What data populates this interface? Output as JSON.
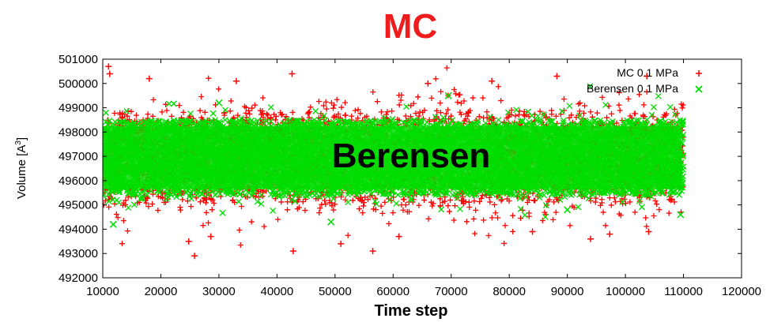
{
  "chart_data": {
    "type": "scatter",
    "title": "MC",
    "annotation": "Berensen",
    "xlabel": "Time step",
    "ylabel_main": "Volume [A",
    "ylabel_sup": "3",
    "ylabel_end": "]",
    "xlim": [
      10000,
      120000
    ],
    "ylim": [
      492000,
      501000
    ],
    "xticks": [
      10000,
      20000,
      30000,
      40000,
      50000,
      60000,
      70000,
      80000,
      90000,
      100000,
      110000,
      120000
    ],
    "yticks": [
      492000,
      493000,
      494000,
      495000,
      496000,
      497000,
      498000,
      499000,
      500000,
      501000
    ],
    "legend_position": "top-right",
    "grid": false,
    "series": [
      {
        "name": "MC 0.1 MPa",
        "marker": "plus",
        "color": "#ff0000",
        "x_range": [
          10000,
          110000
        ],
        "mean": 496900,
        "core_band": [
          495100,
          498900
        ],
        "extremes": [
          {
            "x": 11000,
            "y": 500700
          },
          {
            "x": 11200,
            "y": 500400
          },
          {
            "x": 25800,
            "y": 492900
          },
          {
            "x": 24800,
            "y": 493500
          },
          {
            "x": 42600,
            "y": 500400
          },
          {
            "x": 42800,
            "y": 493100
          },
          {
            "x": 51000,
            "y": 493400
          },
          {
            "x": 56500,
            "y": 493100
          },
          {
            "x": 28600,
            "y": 493700
          },
          {
            "x": 33000,
            "y": 500100
          },
          {
            "x": 66000,
            "y": 500000
          },
          {
            "x": 88200,
            "y": 500300
          },
          {
            "x": 94000,
            "y": 493600
          },
          {
            "x": 97300,
            "y": 493800
          },
          {
            "x": 103700,
            "y": 500300
          },
          {
            "x": 104000,
            "y": 493900
          },
          {
            "x": 18000,
            "y": 500200
          },
          {
            "x": 61000,
            "y": 493700
          },
          {
            "x": 77000,
            "y": 500100
          },
          {
            "x": 84000,
            "y": 493900
          }
        ]
      },
      {
        "name": "Berensen 0.1 MPa",
        "marker": "cross",
        "color": "#00dd00",
        "x_range": [
          10000,
          110000
        ],
        "mean": 496900,
        "core_band": [
          495400,
          498500
        ],
        "extremes": [
          {
            "x": 11800,
            "y": 494200
          },
          {
            "x": 49300,
            "y": 494300
          },
          {
            "x": 69500,
            "y": 499500
          },
          {
            "x": 109500,
            "y": 494600
          },
          {
            "x": 30000,
            "y": 499200
          },
          {
            "x": 90000,
            "y": 494800
          }
        ]
      }
    ]
  }
}
